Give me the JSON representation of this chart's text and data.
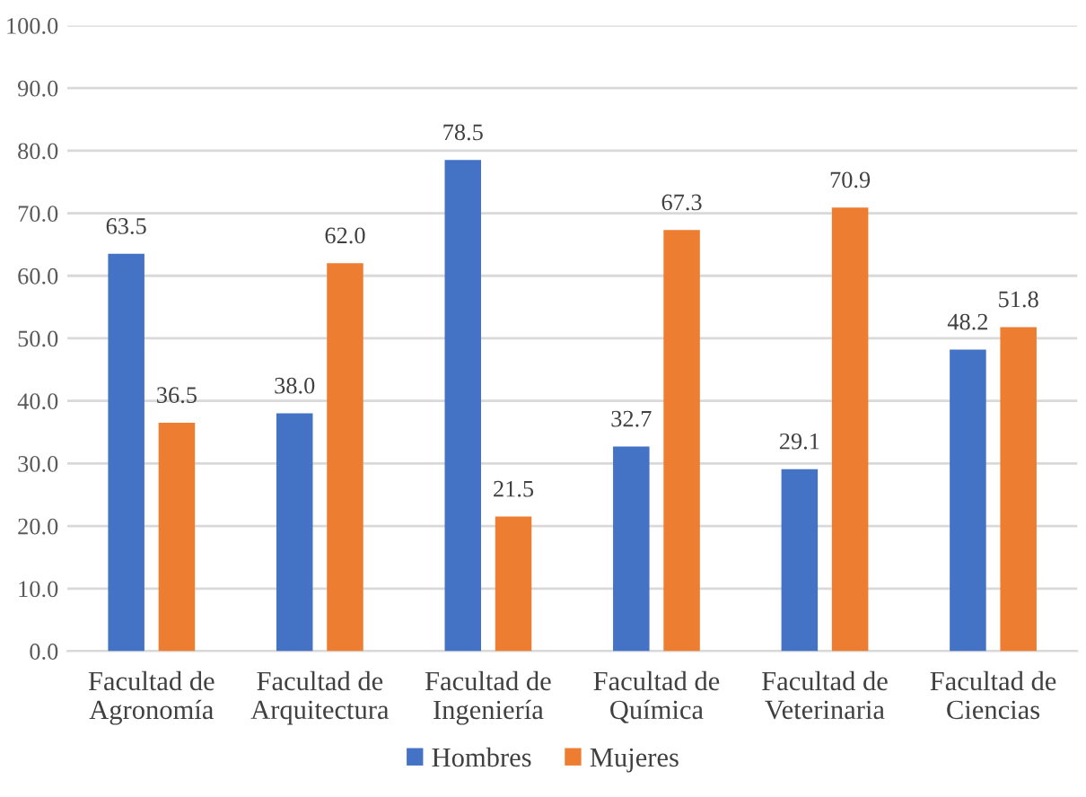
{
  "chart_data": {
    "type": "bar",
    "categories": [
      "Facultad de\nAgronomía",
      "Facultad de\nArquitectura",
      "Facultad de\nIngeniería",
      "Facultad de\nQuímica",
      "Facultad de\nVeterinaria",
      "Facultad de\nCiencias"
    ],
    "series": [
      {
        "name": "Hombres",
        "color": "#4472c4",
        "values": [
          63.5,
          38.0,
          78.5,
          32.7,
          29.1,
          48.2
        ],
        "value_labels": [
          "63.5",
          "38.0",
          "78.5",
          "32.7",
          "29.1",
          "48.2"
        ]
      },
      {
        "name": "Mujeres",
        "color": "#ed7d31",
        "values": [
          36.5,
          62.0,
          21.5,
          67.3,
          70.9,
          51.8
        ],
        "value_labels": [
          "36.5",
          "62.0",
          "21.5",
          "67.3",
          "70.9",
          "51.8"
        ]
      }
    ],
    "ylim": [
      0,
      100
    ],
    "yticks": [
      {
        "value": 0,
        "label": "0.0"
      },
      {
        "value": 10,
        "label": "10.0"
      },
      {
        "value": 20,
        "label": "20.0"
      },
      {
        "value": 30,
        "label": "30.0"
      },
      {
        "value": 40,
        "label": "40.0"
      },
      {
        "value": 50,
        "label": "50.0"
      },
      {
        "value": 60,
        "label": "60.0"
      },
      {
        "value": 70,
        "label": "70.0"
      },
      {
        "value": 80,
        "label": "80.0"
      },
      {
        "value": 90,
        "label": "90.0"
      },
      {
        "value": 100,
        "label": "100.0"
      }
    ],
    "grid": "y",
    "legend": "bottom"
  }
}
